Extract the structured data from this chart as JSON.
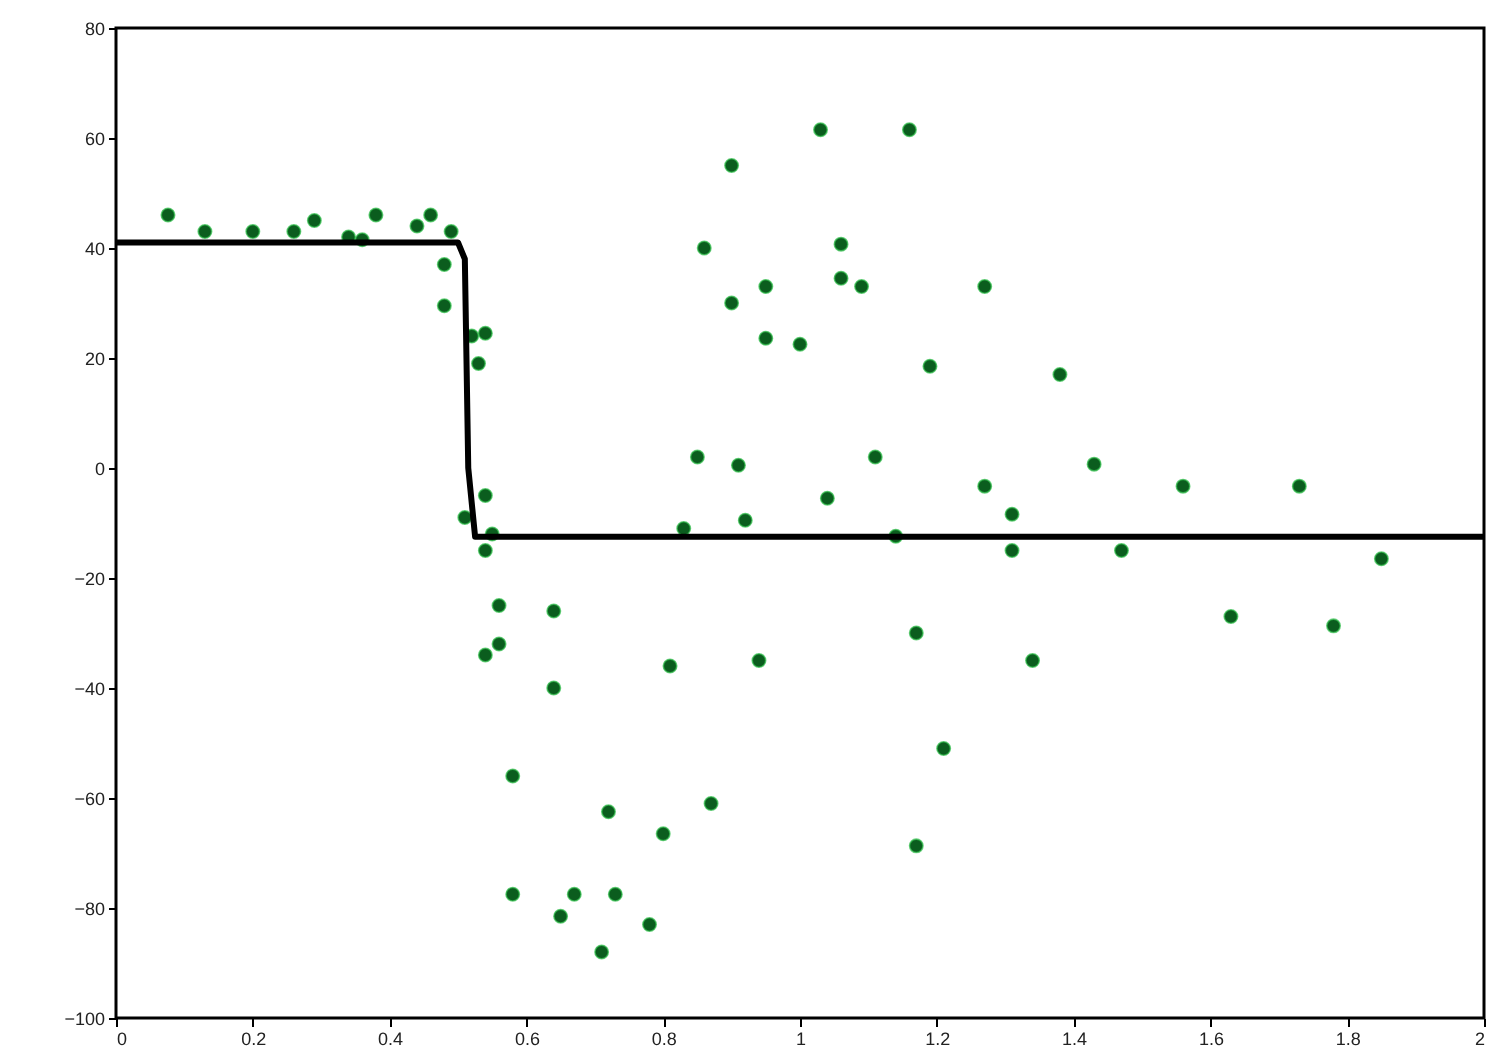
{
  "chart_data": {
    "type": "scatter",
    "xlim": [
      0,
      2
    ],
    "ylim": [
      -100,
      80
    ],
    "xticks": [
      0,
      0.2,
      0.4,
      0.6,
      0.8,
      1,
      1.2,
      1.4,
      1.6,
      1.8,
      2
    ],
    "yticks": [
      -100,
      -80,
      -60,
      -40,
      -20,
      0,
      20,
      40,
      60,
      80
    ],
    "grid": false,
    "series": [
      {
        "marker": "circle",
        "color": "#0b5d1e",
        "x": [
          0.076,
          0.13,
          0.2,
          0.26,
          0.29,
          0.34,
          0.36,
          0.38,
          0.44,
          0.46,
          0.49,
          0.48,
          0.48,
          0.52,
          0.54,
          0.53,
          0.54,
          0.51,
          0.55,
          0.54,
          0.56,
          0.64,
          0.56,
          0.54,
          0.64,
          0.81,
          0.58,
          0.72,
          0.8,
          0.87,
          0.58,
          0.67,
          0.73,
          0.65,
          0.78,
          0.71,
          0.83,
          0.94,
          0.9,
          0.86,
          0.9,
          0.85,
          0.91,
          0.92,
          1.03,
          1.16,
          1.06,
          1.06,
          1.09,
          0.95,
          1.27,
          0.95,
          1.0,
          1.19,
          1.38,
          1.11,
          1.43,
          1.04,
          1.27,
          1.56,
          1.73,
          1.31,
          1.14,
          1.31,
          1.47,
          1.85,
          1.63,
          1.78,
          1.17,
          1.34,
          1.21,
          1.17
        ],
        "values": [
          46,
          43,
          43,
          43,
          45,
          42,
          41.5,
          46,
          44,
          46,
          43,
          37,
          29.5,
          24,
          24.5,
          19,
          -5,
          -9,
          -12,
          -15,
          -25,
          -26,
          -32,
          -34,
          -40,
          -36,
          -56,
          -62.5,
          -66.5,
          -61,
          -77.5,
          -77.5,
          -77.5,
          -81.5,
          -83,
          -88,
          -11,
          -35,
          55,
          40,
          30,
          2,
          0.5,
          -9.5,
          61.5,
          61.5,
          40.7,
          34.5,
          33,
          33,
          33,
          23.6,
          22.5,
          18.5,
          17,
          2,
          0.7,
          -5.5,
          -3.3,
          -3.3,
          -3.3,
          -8.4,
          -12.4,
          -15,
          -15,
          -16.5,
          -27,
          -28.7,
          -30,
          -35,
          -51,
          -68.7
        ]
      },
      {
        "type": "line",
        "marker": "none",
        "line_style": "solid",
        "color": "#000000",
        "x": [
          0,
          0.5,
          0.51,
          0.515,
          0.525,
          2
        ],
        "values": [
          41,
          41,
          38,
          0,
          -12.5,
          -12.5
        ]
      }
    ]
  }
}
